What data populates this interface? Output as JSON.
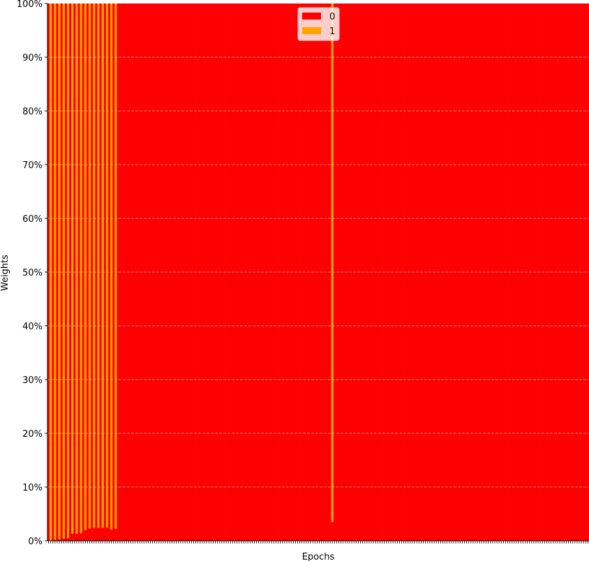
{
  "chart_data": {
    "type": "bar",
    "stacked": true,
    "normalized": true,
    "xlabel": "Epochs",
    "ylabel": "Weights",
    "ylim": [
      0,
      100
    ],
    "yticks": [
      0,
      10,
      20,
      30,
      40,
      50,
      60,
      70,
      80,
      90,
      100
    ],
    "ytick_format": "percent",
    "grid": "y-dashed",
    "legend": {
      "placement": "top-center"
    },
    "num_epochs": 250,
    "series": [
      {
        "name": "0",
        "color": "#ff0000",
        "values_note": "complement of series 1 (100 - value)"
      },
      {
        "name": "1",
        "color": "#ffa500",
        "sparse_values": [
          {
            "epoch": 1,
            "value": 100
          },
          {
            "epoch": 3,
            "value": 99.8
          },
          {
            "epoch": 5,
            "value": 99.7
          },
          {
            "epoch": 7,
            "value": 99.6
          },
          {
            "epoch": 9,
            "value": 99.5
          },
          {
            "epoch": 11,
            "value": 98.7
          },
          {
            "epoch": 13,
            "value": 98.7
          },
          {
            "epoch": 15,
            "value": 98.6
          },
          {
            "epoch": 17,
            "value": 98.0
          },
          {
            "epoch": 19,
            "value": 97.7
          },
          {
            "epoch": 21,
            "value": 97.6
          },
          {
            "epoch": 23,
            "value": 97.6
          },
          {
            "epoch": 25,
            "value": 97.6
          },
          {
            "epoch": 27,
            "value": 97.5
          },
          {
            "epoch": 29,
            "value": 97.9
          },
          {
            "epoch": 31,
            "value": 97.8
          },
          {
            "epoch": 131,
            "value": 96.5
          }
        ],
        "default_value": 0
      }
    ]
  }
}
